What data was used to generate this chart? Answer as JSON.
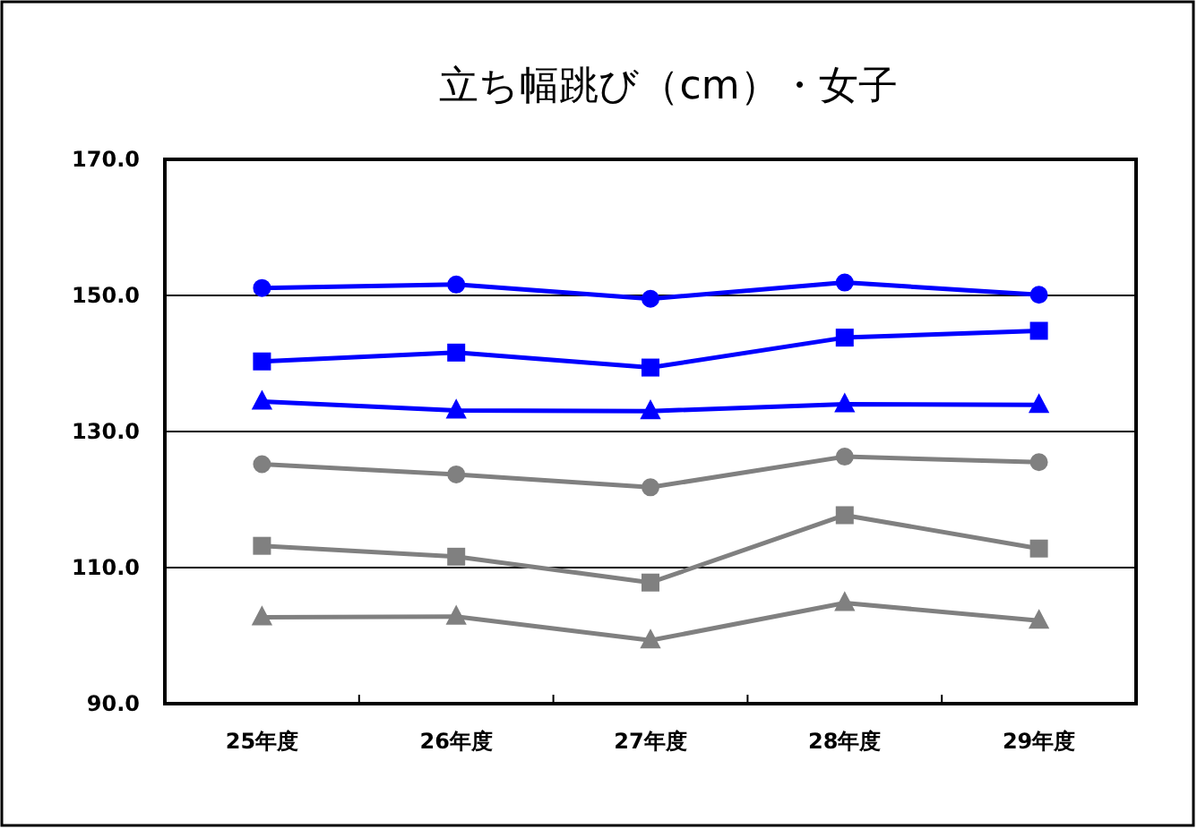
{
  "chart_data": {
    "type": "line",
    "title": "立ち幅跳び（cm）・女子",
    "categories": [
      "25年度",
      "26年度",
      "27年度",
      "28年度",
      "29年度"
    ],
    "series": [
      {
        "color": "#0000ff",
        "marker": "circle",
        "values": [
          151.1,
          151.6,
          149.5,
          151.9,
          150.1
        ]
      },
      {
        "color": "#0000ff",
        "marker": "square",
        "values": [
          140.3,
          141.6,
          139.4,
          143.8,
          144.8
        ]
      },
      {
        "color": "#0000ff",
        "marker": "triangle",
        "values": [
          134.4,
          133.1,
          133.0,
          134.0,
          133.9
        ]
      },
      {
        "color": "#808080",
        "marker": "circle",
        "values": [
          125.2,
          123.7,
          121.8,
          126.3,
          125.5
        ]
      },
      {
        "color": "#808080",
        "marker": "square",
        "values": [
          113.2,
          111.6,
          107.8,
          117.7,
          112.8
        ]
      },
      {
        "color": "#808080",
        "marker": "triangle",
        "values": [
          102.7,
          102.8,
          99.3,
          104.8,
          102.2
        ]
      }
    ],
    "ylim": [
      90,
      170
    ],
    "yticks": [
      {
        "value": 90,
        "label": "90.0"
      },
      {
        "value": 110,
        "label": "110.0"
      },
      {
        "value": 130,
        "label": "130.0"
      },
      {
        "value": 150,
        "label": "150.0"
      },
      {
        "value": 170,
        "label": "170.0"
      }
    ],
    "grid": "y",
    "line_style": "solid"
  }
}
